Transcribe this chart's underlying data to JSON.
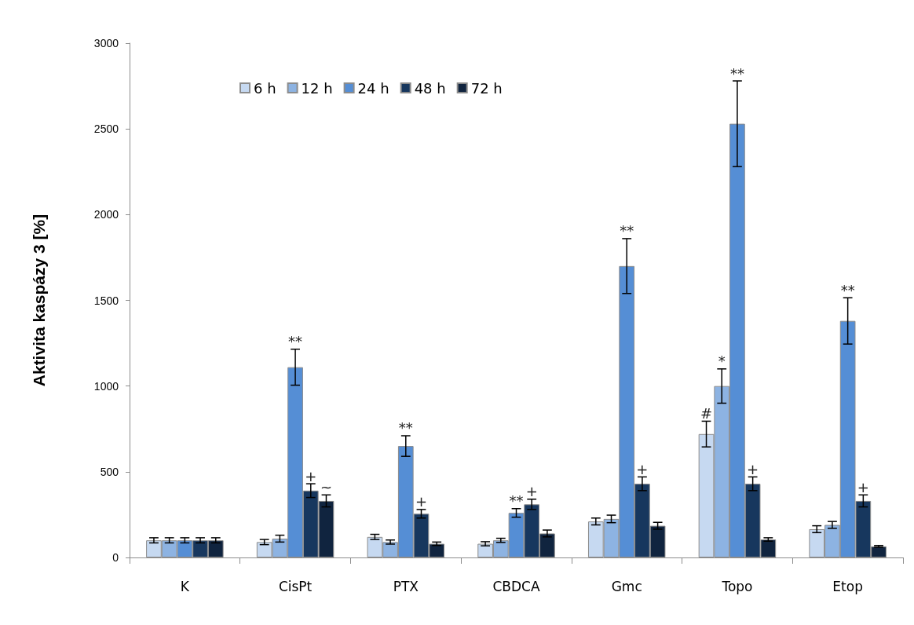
{
  "chart_data": {
    "type": "bar",
    "ylabel": "Aktivita kaspázy 3 [%]",
    "categories": [
      "K",
      "CisPt",
      "PTX",
      "CBDCA",
      "Gmc",
      "Topo",
      "Etop"
    ],
    "series": [
      {
        "name": "6 h",
        "color": "#c6d9f1",
        "values": [
          100,
          90,
          120,
          80,
          210,
          720,
          165
        ],
        "errors": [
          15,
          15,
          15,
          12,
          20,
          75,
          20
        ],
        "value_labels": [
          null,
          null,
          null,
          null,
          null,
          "#",
          null
        ]
      },
      {
        "name": "12 h",
        "color": "#8db3e2",
        "values": [
          100,
          110,
          90,
          100,
          225,
          1000,
          190
        ],
        "errors": [
          15,
          20,
          12,
          12,
          22,
          100,
          20
        ],
        "value_labels": [
          null,
          null,
          null,
          null,
          null,
          "*",
          null
        ]
      },
      {
        "name": "24 h",
        "color": "#558ed5",
        "values": [
          100,
          1110,
          650,
          260,
          1700,
          2530,
          1380
        ],
        "errors": [
          15,
          105,
          60,
          25,
          160,
          250,
          135
        ],
        "value_labels": [
          null,
          "**",
          "**",
          "**",
          "**",
          "**",
          "**"
        ]
      },
      {
        "name": "48 h",
        "color": "#17375e",
        "values": [
          100,
          390,
          255,
          310,
          430,
          430,
          330
        ],
        "errors": [
          15,
          40,
          25,
          30,
          40,
          40,
          35
        ],
        "value_labels": [
          null,
          "+",
          "+",
          "+",
          "+",
          "+",
          "+"
        ]
      },
      {
        "name": "72 h",
        "color": "#10243f",
        "values": [
          100,
          330,
          80,
          140,
          185,
          105,
          65
        ],
        "errors": [
          15,
          35,
          10,
          20,
          20,
          10,
          5
        ],
        "value_labels": [
          null,
          "~",
          null,
          null,
          null,
          null,
          null
        ]
      }
    ],
    "ylim": [
      0,
      3000
    ],
    "yticks": [
      0,
      500,
      1000,
      1500,
      2000,
      2500,
      3000
    ],
    "grid": false,
    "legend": "top"
  }
}
